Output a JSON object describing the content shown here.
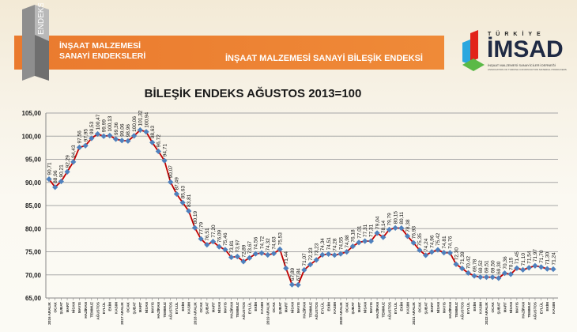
{
  "header": {
    "logo_text": "ENDEKS",
    "left_title_line1": "İNŞAAT MALZEMESİ",
    "left_title_line2": "SANAYİ ENDEKSLERİ",
    "band_title": "İNŞAAT MALZEMESİ SANAYİ BİLEŞİK ENDEKSİ",
    "brand": {
      "top": "TÜRKİYE",
      "name": "İMSAD",
      "subtitle": "İNŞAAT MALZEMESİ SANAYİCİLERİ DERNEĞİ",
      "subtitle_en": "ASSOCIATION OF TURKISH CONSTRUCTION MATERIAL PRODUCERS",
      "colors": {
        "red": "#e2231a",
        "blue": "#2aa7df",
        "green": "#5bb947",
        "navy": "#1f2a44"
      }
    },
    "band_color": "#ec7f33"
  },
  "chart_data": {
    "type": "line",
    "title": "BİLEŞİK ENDEKS AĞUSTOS 2013=100",
    "ylim": [
      65,
      105
    ],
    "y_ticks": [
      "65,00",
      "70,00",
      "75,00",
      "80,00",
      "85,00",
      "90,00",
      "95,00",
      "100,00",
      "105,00"
    ],
    "grid": true,
    "line_color": "#c00000",
    "marker_color": "#4f81bd",
    "categories": [
      "2016 ARALIK",
      "OCAK",
      "ŞUBAT",
      "MART",
      "NİSAN",
      "MAYIS",
      "HAZİRAN",
      "TEMMUZ",
      "AĞUSTOS",
      "EYLÜL",
      "EKİM",
      "KASIM",
      "2017 ARALIK",
      "OCAK",
      "ŞUBAT",
      "MART",
      "NİSAN",
      "MAYIS",
      "HAZİRAN",
      "TEMMUZ",
      "AĞUSTOS",
      "EYLÜL",
      "EKİM",
      "KASIM",
      "2018 ARALIK",
      "OCAK",
      "ŞUBAT",
      "MART",
      "NİSAN",
      "MAYIS",
      "HAZİRAN",
      "TEMMUZ",
      "AĞUSTOS",
      "EYLÜL",
      "EKİM",
      "KASIM",
      "2019 ARALIK",
      "OCAK",
      "ŞUBAT",
      "MART",
      "NİSAN",
      "MAYIS",
      "HAZİRAN",
      "TEMMUZ",
      "AĞUSTOS",
      "EYLÜL",
      "EKİM",
      "KASIM",
      "2020 ARALIK",
      "OCAK",
      "ŞUBAT",
      "MART",
      "NİSAN",
      "MAYIS",
      "HAZİRAN",
      "TEMMUZ",
      "AĞUSTOS",
      "EYLÜL",
      "EKİM",
      "KASIM",
      "2021 ARALIK",
      "OCAK",
      "ŞUBAT",
      "MART",
      "NİSAN",
      "MAYIS",
      "HAZİRAN",
      "TEMMUZ",
      "AĞUSTOS",
      "EYLÜL",
      "EKİM",
      "KASIM",
      "2022 ARALIK",
      "OCAK",
      "ŞUBAT",
      "MART",
      "NİSAN",
      "MAYIS",
      "HAZİRAN",
      "TEMMUZ",
      "AĞUSTOS",
      "EYLÜL",
      "EKİM",
      "KASIM"
    ],
    "values": [
      90.71,
      88.96,
      90.21,
      92.29,
      94.43,
      97.56,
      97.95,
      99.53,
      100.47,
      99.99,
      100.13,
      99.36,
      99.06,
      98.96,
      100.06,
      101.32,
      100.94,
      98.63,
      96.72,
      94.71,
      90.07,
      87.49,
      85.63,
      83.81,
      80.19,
      77.79,
      76.51,
      77.2,
      76.09,
      75.46,
      73.81,
      73.97,
      72.89,
      73.67,
      74.56,
      74.72,
      74.32,
      74.63,
      75.53,
      71.44,
      67.89,
      67.84,
      71.07,
      72.23,
      73.23,
      74.34,
      74.51,
      74.28,
      74.55,
      74.98,
      76.18,
      77.01,
      77.31,
      77.31,
      79.04,
      78.14,
      79.79,
      80.15,
      80.11,
      78.38,
      76.93,
      75.35,
      74.24,
      74.96,
      75.42,
      74.81,
      74.76,
      72.3,
      71.39,
      70.42,
      69.78,
      69.52,
      69.51,
      69.5,
      69.3,
      70.36,
      70.15,
      71.45,
      71.1,
      71.54,
      71.97,
      71.7,
      71.3,
      71.24
    ]
  }
}
